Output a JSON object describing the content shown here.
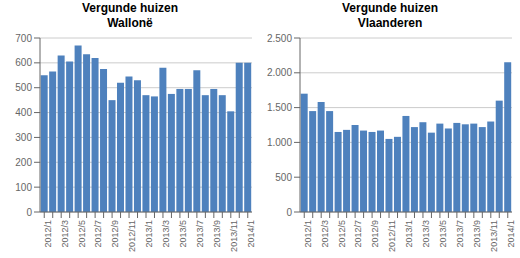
{
  "chart_data": [
    {
      "type": "bar",
      "title": "Vergunde huizen\nWallonë",
      "categories": [
        "2012/1",
        null,
        "2012/3",
        null,
        "2012/5",
        null,
        "2012/7",
        null,
        "2012/9",
        null,
        "2012/11",
        null,
        "2013/1",
        null,
        "2013/3",
        null,
        "2013/5",
        null,
        "2013/7",
        null,
        "2013/9",
        null,
        "2013/11",
        null,
        "2014/1"
      ],
      "values": [
        550,
        565,
        630,
        605,
        670,
        635,
        620,
        575,
        450,
        520,
        545,
        530,
        470,
        465,
        580,
        475,
        495,
        495,
        570,
        470,
        495,
        470,
        405,
        600,
        600
      ],
      "color": "#4E81BD",
      "ylim": [
        0,
        700
      ],
      "yticks": [
        0,
        100,
        200,
        300,
        400,
        500,
        600,
        700
      ],
      "grid": true
    },
    {
      "type": "bar",
      "title": "Vergunde huizen\nVlaanderen",
      "categories": [
        "2012/1",
        null,
        "2012/3",
        null,
        "2012/5",
        null,
        "2012/7",
        null,
        "2012/9",
        null,
        "2012/11",
        null,
        "2013/1",
        null,
        "2013/3",
        null,
        "2013/5",
        null,
        "2013/7",
        null,
        "2013/9",
        null,
        "2013/11",
        null,
        "2014/1"
      ],
      "values": [
        1700,
        1450,
        1580,
        1450,
        1150,
        1180,
        1250,
        1170,
        1150,
        1170,
        1050,
        1080,
        1380,
        1220,
        1290,
        1140,
        1270,
        1200,
        1280,
        1260,
        1270,
        1220,
        1300,
        1600,
        2150
      ],
      "color": "#4E81BD",
      "ylim": [
        0,
        2500
      ],
      "yticks": [
        0,
        500,
        {
          "value": 1000,
          "label": "1.000"
        },
        {
          "value": 1500,
          "label": "1.500"
        },
        {
          "value": 2000,
          "label": "2.000"
        },
        {
          "value": 2500,
          "label": "2.500"
        }
      ],
      "grid": true
    }
  ]
}
